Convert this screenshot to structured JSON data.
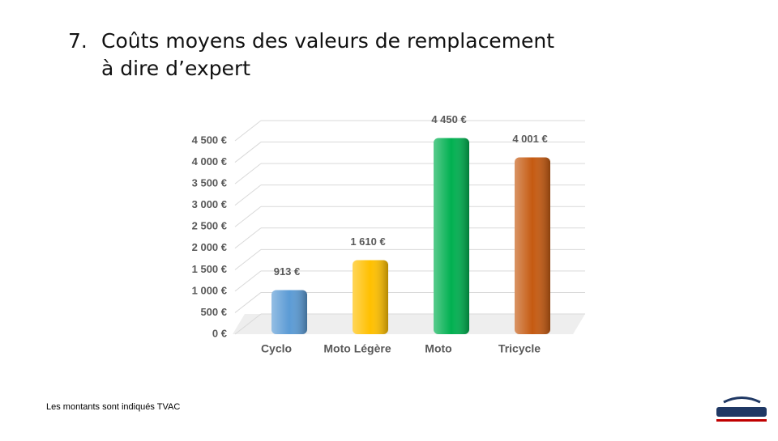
{
  "slide": {
    "number": "7.",
    "title": "Coûts moyens des valeurs de remplacement à dire d’expert",
    "footnote": "Les montants sont indiqués TVAC"
  },
  "chart_data": {
    "type": "bar",
    "categories": [
      "Cyclo",
      "Moto Légère",
      "Moto",
      "Tricycle"
    ],
    "values": [
      913,
      1610,
      4450,
      4001
    ],
    "value_labels": [
      "913 €",
      "1 610 €",
      "4 450 €",
      "4 001 €"
    ],
    "colors": [
      "#5b9bd5",
      "#ffc000",
      "#00b050",
      "#c55a11"
    ],
    "ylim": [
      0,
      4500
    ],
    "yticks": [
      {
        "value": 0,
        "label": "0 €"
      },
      {
        "value": 500,
        "label": "500 €"
      },
      {
        "value": 1000,
        "label": "1 000 €"
      },
      {
        "value": 1500,
        "label": "1 500 €"
      },
      {
        "value": 2000,
        "label": "2 000 €"
      },
      {
        "value": 2500,
        "label": "2 500 €"
      },
      {
        "value": 3000,
        "label": "3 000 €"
      },
      {
        "value": 3500,
        "label": "3 500 €"
      },
      {
        "value": 4000,
        "label": "4 000 €"
      },
      {
        "value": 4500,
        "label": "4 500 €"
      }
    ],
    "grid": true
  }
}
